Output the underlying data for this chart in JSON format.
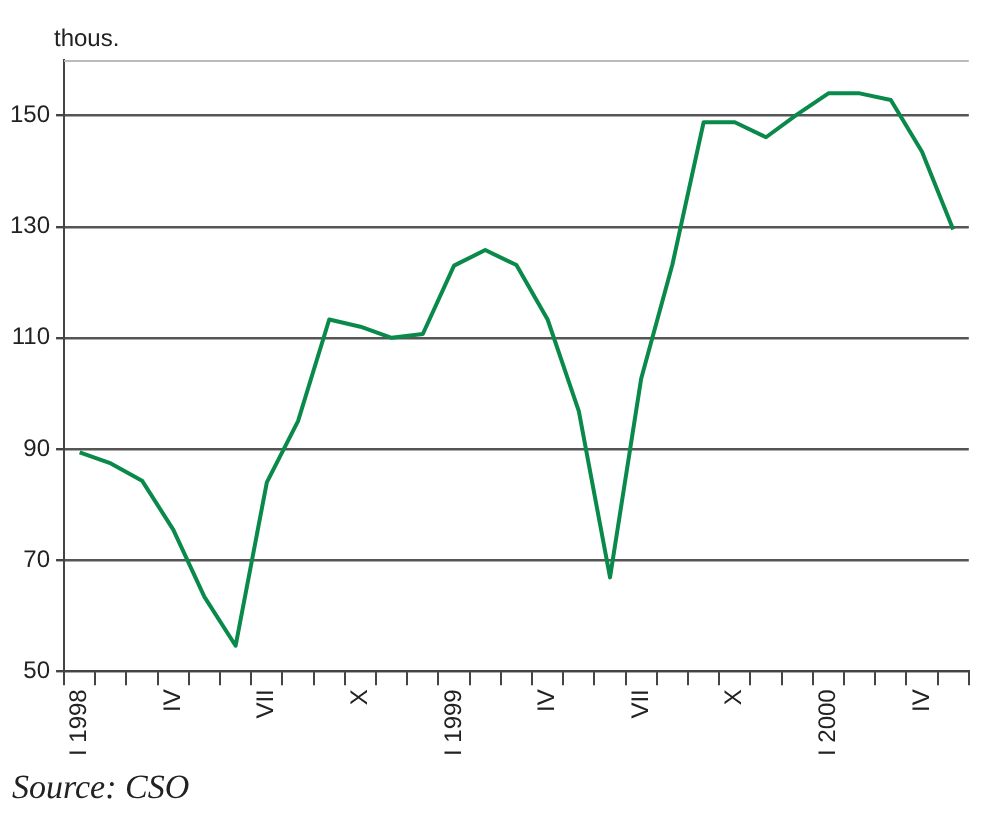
{
  "chart_data": {
    "type": "line",
    "ylabel": "thous.",
    "annotations": [
      "Source: CSO"
    ],
    "categories": [
      "I 1998",
      null,
      null,
      "IV",
      null,
      null,
      "VII",
      null,
      null,
      "X",
      null,
      null,
      "I 1999",
      null,
      null,
      "IV",
      null,
      null,
      "VII",
      null,
      null,
      "X",
      null,
      null,
      "I 2000",
      null,
      null,
      "IV",
      null
    ],
    "series": [
      {
        "color": "#0a8a4a",
        "values": [
          89.4,
          87.4,
          84.3,
          75.5,
          63.4,
          54.6,
          84,
          95,
          113.3,
          112,
          110,
          110.7,
          123,
          125.8,
          123.1,
          113.3,
          96.8,
          66.9,
          102.7,
          123.2,
          148.8,
          148.8,
          146.1,
          150.2,
          154,
          154,
          152.8,
          143.5,
          129.5
        ]
      }
    ],
    "ylim": [
      50,
      160
    ],
    "yticks": [
      50,
      70,
      90,
      110,
      130,
      150
    ],
    "grid": "y",
    "legend": false,
    "marker": "none",
    "line_style": "solid"
  }
}
